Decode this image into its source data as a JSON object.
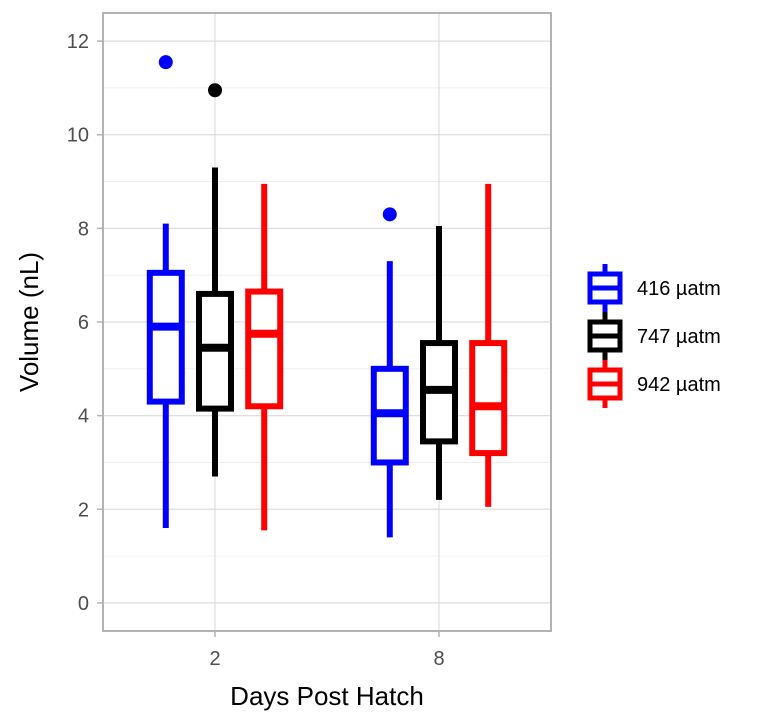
{
  "chart_data": {
    "type": "boxplot",
    "title": "",
    "xlabel": "Days Post Hatch",
    "ylabel": "Volume (nL)",
    "categories": [
      "2",
      "8"
    ],
    "ylim": [
      -0.6,
      12.6
    ],
    "yticks": [
      "0",
      "2",
      "4",
      "6",
      "8",
      "10",
      "12"
    ],
    "grid": true,
    "legend_position": "right",
    "series": [
      {
        "name": "416 µatm",
        "color": "#0000ff",
        "boxes": [
          {
            "min": 1.6,
            "q1": 4.3,
            "median": 5.9,
            "q3": 7.05,
            "max": 8.1,
            "outliers": [
              11.55
            ]
          },
          {
            "min": 1.4,
            "q1": 3.0,
            "median": 4.05,
            "q3": 5.0,
            "max": 7.3,
            "outliers": [
              8.3
            ]
          }
        ]
      },
      {
        "name": "747 µatm",
        "color": "#000000",
        "boxes": [
          {
            "min": 2.7,
            "q1": 4.15,
            "median": 5.45,
            "q3": 6.6,
            "max": 9.3,
            "outliers": [
              10.95
            ]
          },
          {
            "min": 2.2,
            "q1": 3.45,
            "median": 4.55,
            "q3": 5.55,
            "max": 8.05,
            "outliers": []
          }
        ]
      },
      {
        "name": "942 µatm",
        "color": "#ff0000",
        "boxes": [
          {
            "min": 1.55,
            "q1": 4.2,
            "median": 5.75,
            "q3": 6.65,
            "max": 8.95,
            "outliers": []
          },
          {
            "min": 2.05,
            "q1": 3.2,
            "median": 4.2,
            "q3": 5.55,
            "max": 8.95,
            "outliers": []
          }
        ]
      }
    ]
  }
}
